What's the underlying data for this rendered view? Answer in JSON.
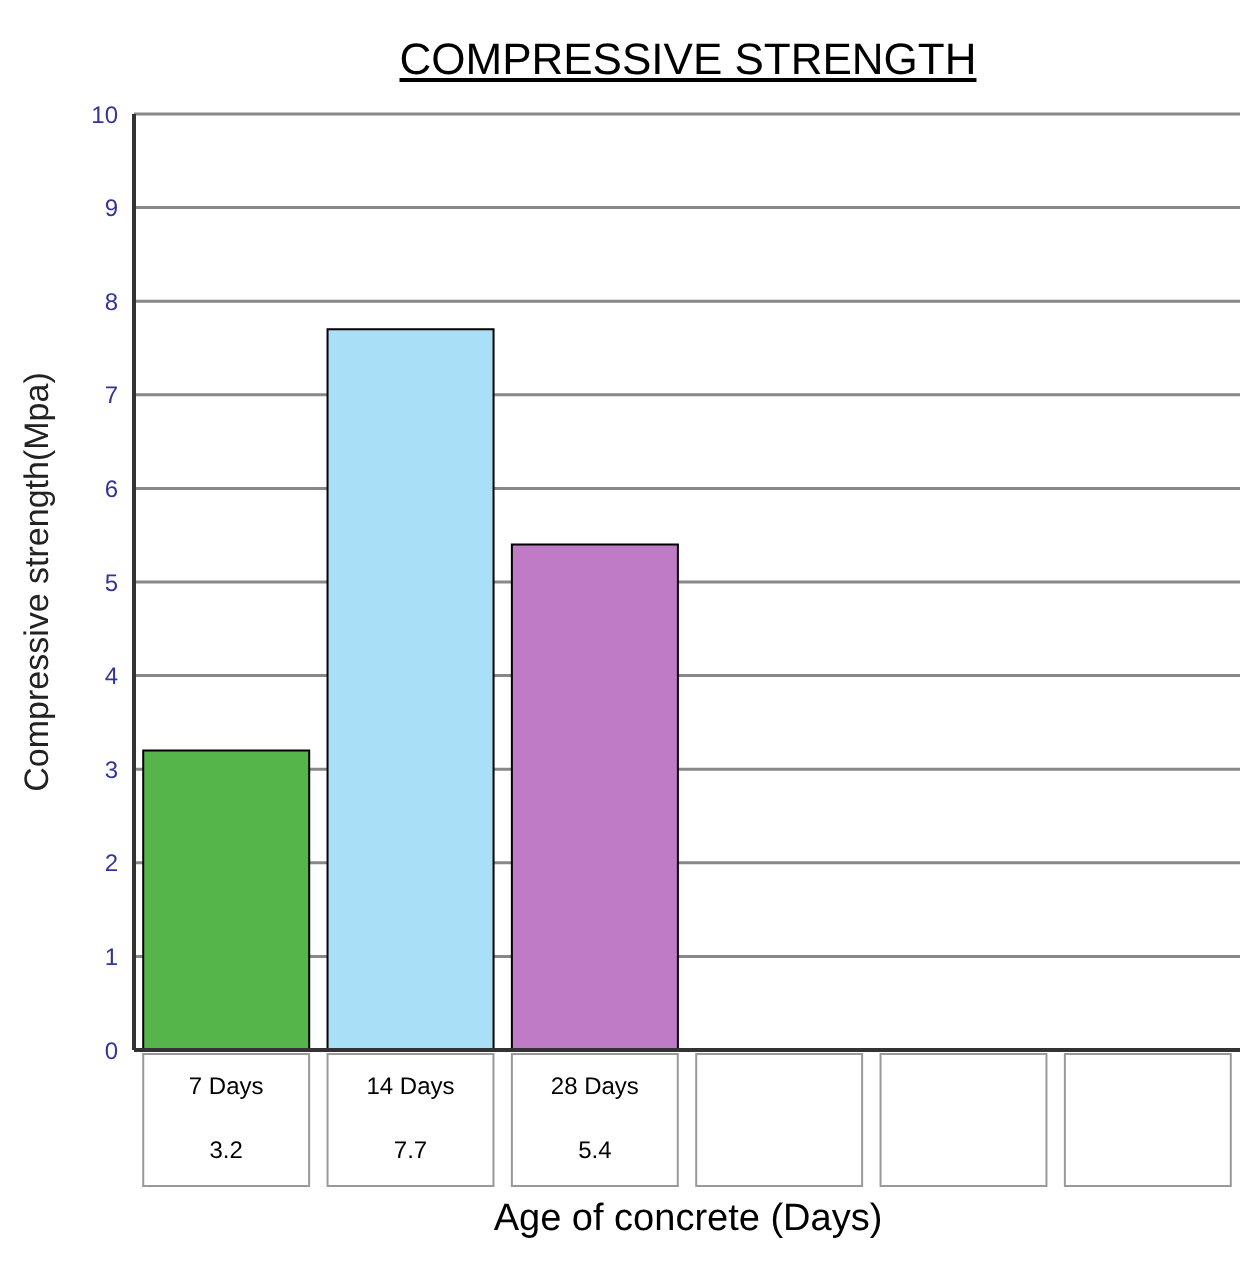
{
  "chart_data": {
    "type": "bar",
    "title": "COMPRESSIVE STRENGTH",
    "xlabel": "Age of concrete (Days)",
    "ylabel": "Compressive strength(Mpa)",
    "categories": [
      "7 Days",
      "14 Days",
      "28 Days",
      null,
      null,
      null
    ],
    "values": [
      3.2,
      7.7,
      5.4,
      null,
      null,
      null
    ],
    "colors": [
      "#55b54a",
      "#aadff8",
      "#bf7bc6",
      null,
      null,
      null
    ],
    "ylim": [
      0,
      10
    ],
    "yticks": [
      0,
      1,
      2,
      3,
      4,
      5,
      6,
      7,
      8,
      9,
      10
    ],
    "grid": "y",
    "data_labels": true
  }
}
